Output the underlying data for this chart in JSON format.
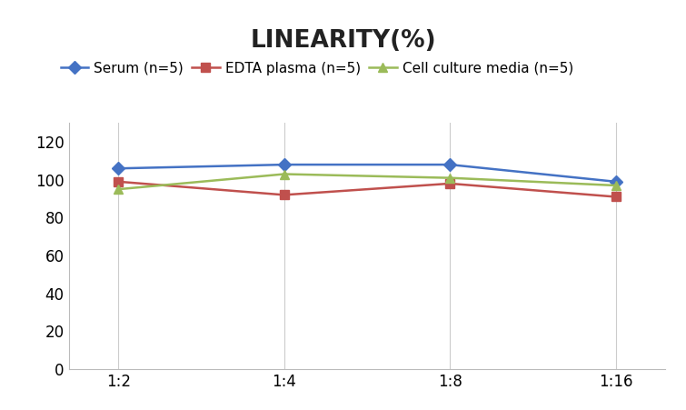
{
  "title": "LINEARITY(%)",
  "x_labels": [
    "1:2",
    "1:4",
    "1:8",
    "1:16"
  ],
  "x_positions": [
    0,
    1,
    2,
    3
  ],
  "series": [
    {
      "label": "Serum (n=5)",
      "values": [
        106,
        108,
        108,
        99
      ],
      "color": "#4472C4",
      "marker": "D"
    },
    {
      "label": "EDTA plasma (n=5)",
      "values": [
        99,
        92,
        98,
        91
      ],
      "color": "#C0504D",
      "marker": "s"
    },
    {
      "label": "Cell culture media (n=5)",
      "values": [
        95,
        103,
        101,
        97
      ],
      "color": "#9BBB59",
      "marker": "^"
    }
  ],
  "ylim": [
    0,
    130
  ],
  "yticks": [
    0,
    20,
    40,
    60,
    80,
    100,
    120
  ],
  "background_color": "#FFFFFF",
  "title_fontsize": 19,
  "legend_fontsize": 11,
  "tick_fontsize": 12,
  "grid_color": "#CCCCCC",
  "spine_color": "#BBBBBB"
}
